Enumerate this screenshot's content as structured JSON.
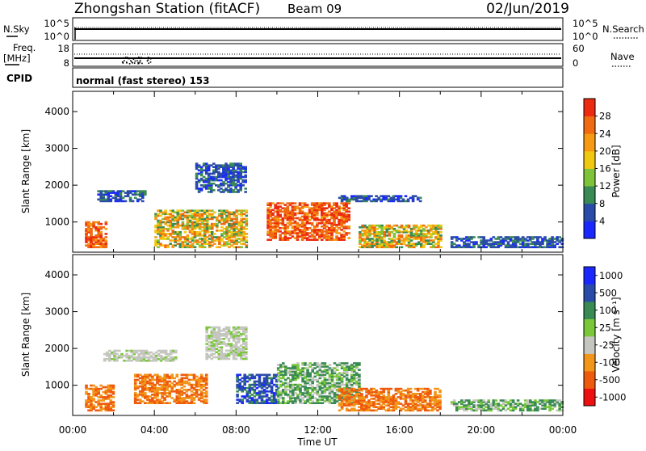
{
  "header": {
    "station": "Zhongshan Station (fitACF)",
    "beam": "Beam 09",
    "date": "02/Jun/2019"
  },
  "strip1": {
    "left_label": "N.Sky",
    "left_ticks": [
      "10^5",
      "10^0"
    ],
    "right_ticks": [
      "10^5",
      "10^0"
    ],
    "right_label": "N.Search"
  },
  "strip2": {
    "left_label_1": "Freq.",
    "left_label_2": "[MHz]",
    "left_ticks": [
      "18",
      "8"
    ],
    "right_ticks": [
      "60",
      "0"
    ],
    "right_label": "Nave"
  },
  "strip3": {
    "left_label": "CPID",
    "mode_text": "normal (fast stereo) 153"
  },
  "colors": {
    "power": [
      "#1a28ff",
      "#2a4ca8",
      "#3a8a55",
      "#7fc33a",
      "#f2c80f",
      "#f59a12",
      "#ef6a10",
      "#ec2a10"
    ],
    "velocity": [
      "#ee1010",
      "#ee5a0e",
      "#f2961a",
      "#c6c6c0",
      "#7ac83a",
      "#3a8a55",
      "#2a4ca8",
      "#1a28ff"
    ]
  },
  "chart_data": [
    {
      "type": "heatmap",
      "ylabel": "Slant Range [km]",
      "xlabel": "",
      "y_ticks": [
        "4000",
        "3000",
        "2000",
        "1000"
      ],
      "x_tick_labels": [],
      "ylim": [
        180,
        4550
      ],
      "colorbar": {
        "label": "Power [dB]",
        "ticks": [
          "28",
          "24",
          "20",
          "16",
          "12",
          "8",
          "4"
        ],
        "range": [
          0,
          32
        ]
      },
      "regions": [
        {
          "t": [
            0.6,
            1.6
          ],
          "r": [
            300,
            1000
          ],
          "level": "high"
        },
        {
          "t": [
            1.2,
            3.5
          ],
          "r": [
            1550,
            1850
          ],
          "level": "low"
        },
        {
          "t": [
            4.0,
            8.5
          ],
          "r": [
            300,
            1300
          ],
          "level": "mid"
        },
        {
          "t": [
            6.0,
            8.5
          ],
          "r": [
            1800,
            2600
          ],
          "level": "low"
        },
        {
          "t": [
            9.5,
            13.5
          ],
          "r": [
            500,
            1500
          ],
          "level": "high"
        },
        {
          "t": [
            13.0,
            17.0
          ],
          "r": [
            1550,
            1700
          ],
          "level": "low"
        },
        {
          "t": [
            14.0,
            18.0
          ],
          "r": [
            300,
            900
          ],
          "level": "mid"
        },
        {
          "t": [
            18.5,
            24.0
          ],
          "r": [
            300,
            600
          ],
          "level": "low"
        }
      ]
    },
    {
      "type": "heatmap",
      "ylabel": "Slant Range [km]",
      "xlabel": "Time UT",
      "y_ticks": [
        "4000",
        "3000",
        "2000",
        "1000"
      ],
      "x_tick_labels": [
        "00:00",
        "04:00",
        "08:00",
        "12:00",
        "16:00",
        "20:00",
        "00:00"
      ],
      "ylim": [
        180,
        4550
      ],
      "colorbar": {
        "label": "Velocity [m s⁻¹]",
        "ticks": [
          "1000",
          "500",
          "100",
          "25",
          "-25",
          "-100",
          "-500",
          "-1000"
        ],
        "range": [
          -1000,
          1000
        ]
      },
      "regions": [
        {
          "t": [
            0.6,
            2.0
          ],
          "r": [
            300,
            1000
          ],
          "level": "orange"
        },
        {
          "t": [
            1.5,
            5.0
          ],
          "r": [
            1650,
            1950
          ],
          "level": "grey"
        },
        {
          "t": [
            3.0,
            6.5
          ],
          "r": [
            500,
            1300
          ],
          "level": "orange"
        },
        {
          "t": [
            6.5,
            8.5
          ],
          "r": [
            1700,
            2600
          ],
          "level": "grey"
        },
        {
          "t": [
            8.0,
            10.0
          ],
          "r": [
            500,
            1300
          ],
          "level": "blue"
        },
        {
          "t": [
            10.0,
            14.0
          ],
          "r": [
            500,
            1600
          ],
          "level": "green"
        },
        {
          "t": [
            13.0,
            18.0
          ],
          "r": [
            300,
            900
          ],
          "level": "orange"
        },
        {
          "t": [
            18.5,
            24.0
          ],
          "r": [
            300,
            600
          ],
          "level": "green"
        }
      ]
    }
  ]
}
